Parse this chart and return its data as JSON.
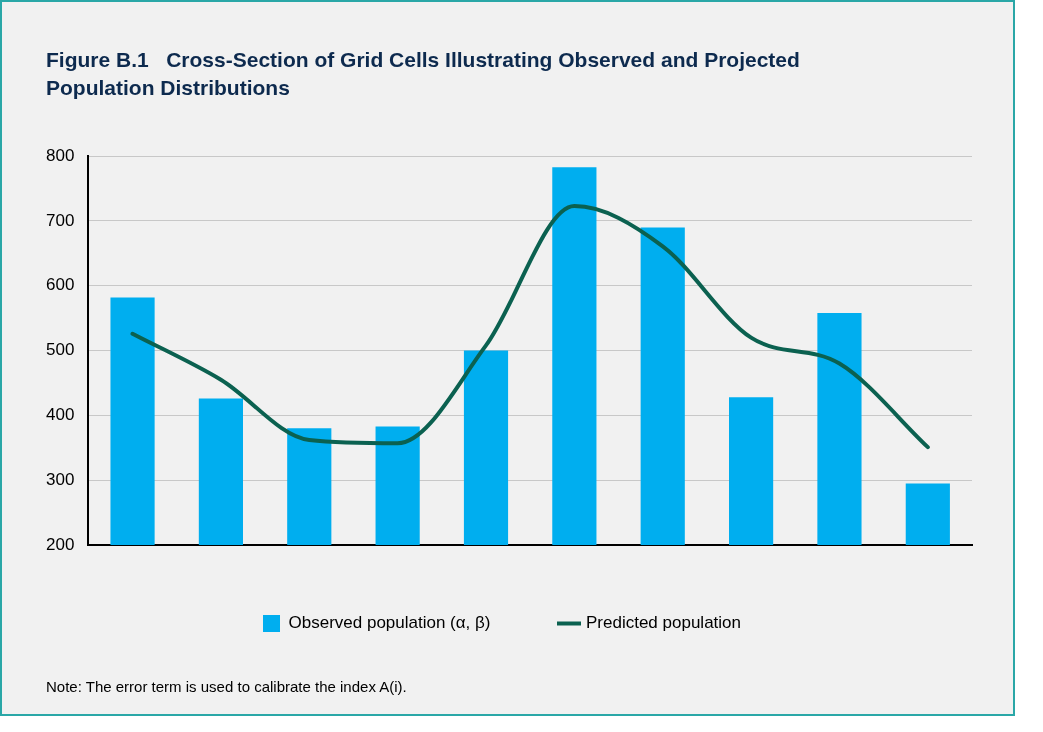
{
  "chart_data": {
    "type": "bar",
    "title": "Figure B.1   Cross-Section of Grid Cells Illustrating Observed and Projected Population Distributions",
    "categories": [
      null,
      null,
      null,
      null,
      null,
      null,
      null,
      null,
      null,
      null
    ],
    "series": [
      {
        "name": "Observed population (α, β)",
        "color": "#00aeef",
        "values": [
          582,
          426,
          380,
          383,
          500,
          783,
          690,
          428,
          558,
          295
        ]
      },
      {
        "name": "Predicted population",
        "type": "line",
        "color": "#0b6150",
        "values": [
          526,
          455,
          362,
          357,
          508,
          723,
          661,
          520,
          480,
          351
        ]
      }
    ],
    "ylim": [
      200,
      800
    ],
    "yticks": [
      200,
      300,
      400,
      500,
      600,
      700,
      800
    ],
    "grid": "y",
    "legend": "bottom",
    "marker": "none",
    "line_style": "solid",
    "annotations": [
      "Note: The error term is used to calibrate the index A(i)."
    ]
  }
}
